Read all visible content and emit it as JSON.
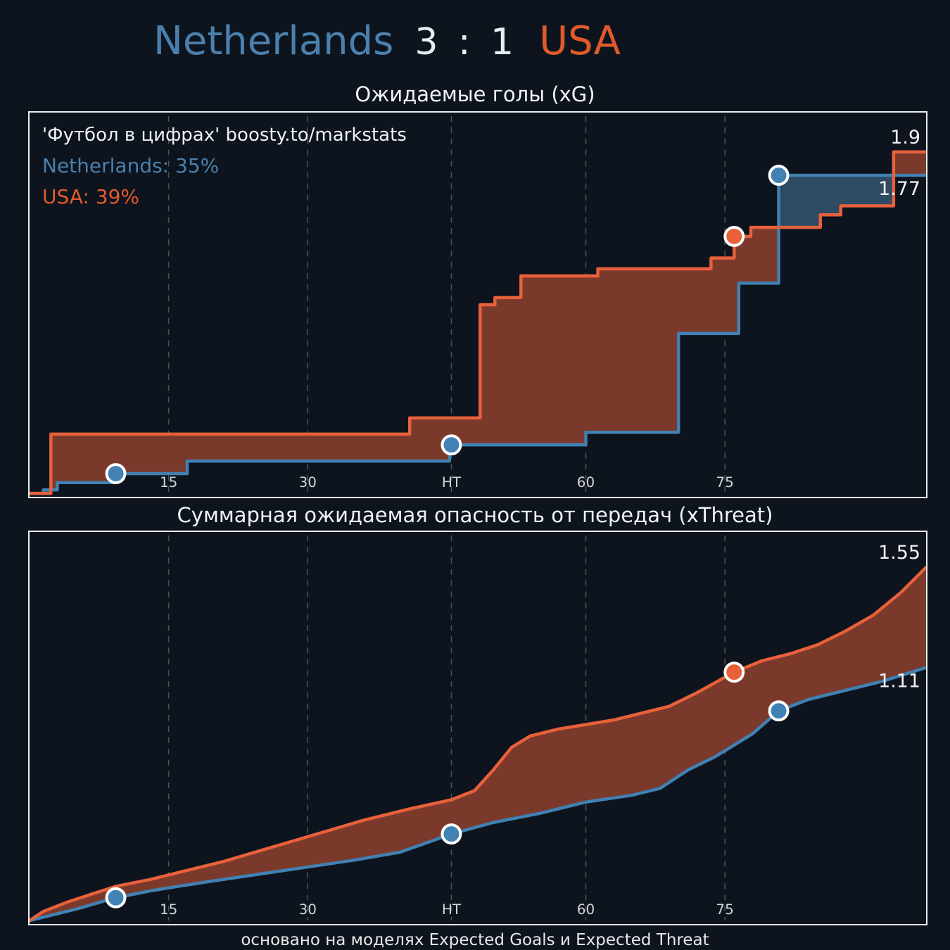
{
  "palette": {
    "background": "#0d141d",
    "home": "#4a80ae",
    "away": "#e25a2c",
    "score_text": "#e6edf3",
    "panel_border": "#eceff1",
    "grid": "#4e545c",
    "tick_text": "#d2d6da",
    "label_text": "#f2f2f2",
    "marker_ring": "#ffffff",
    "fill_away_above": "#7b392c",
    "fill_home_above": "#2e4b63"
  },
  "header": {
    "home": "Netherlands",
    "score": "3 : 1",
    "away": "USA"
  },
  "watermark": {
    "credit": "'Футбол в цифрах' boosty.to/markstats",
    "home_line": "Netherlands: 35%",
    "away_line": "USA: 39%"
  },
  "footer": "основано на моделях Expected Goals и Expected Threat",
  "chart_data": [
    {
      "type": "area",
      "curve": "step",
      "title": "Ожидаемые голы (xG)",
      "xlim": [
        0,
        96.7
      ],
      "ylim": [
        0,
        2.1
      ],
      "grid": true,
      "x_ticks": [
        {
          "minute": 15,
          "label": "15"
        },
        {
          "minute": 30,
          "label": "30"
        },
        {
          "minute": 45.5,
          "label": "HT"
        },
        {
          "minute": 60,
          "label": "60"
        },
        {
          "minute": 75,
          "label": "75"
        }
      ],
      "series": [
        {
          "name": "Netherlands",
          "color": "#4181b3",
          "final_label": "1.77",
          "points": [
            [
              0,
              0
            ],
            [
              1.5,
              0.02
            ],
            [
              3,
              0.06
            ],
            [
              9.3,
              0.11
            ],
            [
              17,
              0.18
            ],
            [
              45.3,
              0.27
            ],
            [
              60,
              0.34
            ],
            [
              70,
              0.89
            ],
            [
              76.5,
              1.17
            ],
            [
              80.8,
              1.77
            ]
          ]
        },
        {
          "name": "USA",
          "color": "#e8613a",
          "final_label": "1.9",
          "points": [
            [
              0,
              0
            ],
            [
              2.3,
              0.33
            ],
            [
              41,
              0.42
            ],
            [
              48.6,
              1.05
            ],
            [
              50.2,
              1.09
            ],
            [
              53,
              1.21
            ],
            [
              61.3,
              1.25
            ],
            [
              73.5,
              1.31
            ],
            [
              76,
              1.43
            ],
            [
              77.8,
              1.48
            ],
            [
              85.3,
              1.55
            ],
            [
              87.5,
              1.6
            ],
            [
              93.2,
              1.9
            ]
          ]
        }
      ],
      "markers": [
        {
          "team": "home",
          "minute": 9.3,
          "event": "goal"
        },
        {
          "team": "home",
          "minute": 45.5,
          "event": "goal"
        },
        {
          "team": "away",
          "minute": 76,
          "event": "goal"
        },
        {
          "team": "home",
          "minute": 80.8,
          "event": "goal"
        }
      ]
    },
    {
      "type": "area",
      "curve": "linear",
      "title": "Суммарная ожидаемая опасность от передач (xThreat)",
      "xlim": [
        0,
        96.7
      ],
      "ylim": [
        0,
        1.69
      ],
      "grid": true,
      "x_ticks": [
        {
          "minute": 15,
          "label": "15"
        },
        {
          "minute": 30,
          "label": "30"
        },
        {
          "minute": 45.5,
          "label": "HT"
        },
        {
          "minute": 60,
          "label": "60"
        },
        {
          "minute": 75,
          "label": "75"
        }
      ],
      "series": [
        {
          "name": "Netherlands",
          "color": "#4181b3",
          "final_label": "1.11",
          "points": [
            [
              0,
              0
            ],
            [
              2,
              0.02
            ],
            [
              5,
              0.05
            ],
            [
              9.3,
              0.1
            ],
            [
              13,
              0.13
            ],
            [
              16,
              0.15
            ],
            [
              20,
              0.175
            ],
            [
              25,
              0.205
            ],
            [
              30,
              0.235
            ],
            [
              35,
              0.265
            ],
            [
              40,
              0.3
            ],
            [
              45.5,
              0.38
            ],
            [
              50,
              0.43
            ],
            [
              55,
              0.47
            ],
            [
              60,
              0.52
            ],
            [
              65,
              0.55
            ],
            [
              68,
              0.58
            ],
            [
              71,
              0.66
            ],
            [
              74,
              0.72
            ],
            [
              78,
              0.82
            ],
            [
              80.8,
              0.92
            ],
            [
              84,
              0.97
            ],
            [
              88,
              1.01
            ],
            [
              92,
              1.05
            ],
            [
              96.7,
              1.11
            ]
          ]
        },
        {
          "name": "USA",
          "color": "#e8613a",
          "final_label": "1.55",
          "points": [
            [
              0,
              0
            ],
            [
              1.5,
              0.04
            ],
            [
              4,
              0.08
            ],
            [
              7,
              0.12
            ],
            [
              9.3,
              0.15
            ],
            [
              13,
              0.18
            ],
            [
              17,
              0.22
            ],
            [
              21,
              0.26
            ],
            [
              26,
              0.32
            ],
            [
              31,
              0.38
            ],
            [
              36,
              0.44
            ],
            [
              41,
              0.49
            ],
            [
              45.5,
              0.53
            ],
            [
              48,
              0.57
            ],
            [
              50,
              0.66
            ],
            [
              52,
              0.76
            ],
            [
              54,
              0.81
            ],
            [
              57,
              0.84
            ],
            [
              60,
              0.86
            ],
            [
              63,
              0.88
            ],
            [
              66,
              0.91
            ],
            [
              69,
              0.94
            ],
            [
              72,
              1.0
            ],
            [
              76,
              1.09
            ],
            [
              79,
              1.14
            ],
            [
              82,
              1.17
            ],
            [
              85,
              1.21
            ],
            [
              88,
              1.27
            ],
            [
              91,
              1.34
            ],
            [
              94,
              1.44
            ],
            [
              96.7,
              1.55
            ]
          ]
        }
      ],
      "markers": [
        {
          "team": "home",
          "minute": 9.3,
          "event": "goal"
        },
        {
          "team": "home",
          "minute": 45.5,
          "event": "goal"
        },
        {
          "team": "away",
          "minute": 76,
          "event": "goal"
        },
        {
          "team": "home",
          "minute": 80.8,
          "event": "goal"
        }
      ]
    }
  ]
}
